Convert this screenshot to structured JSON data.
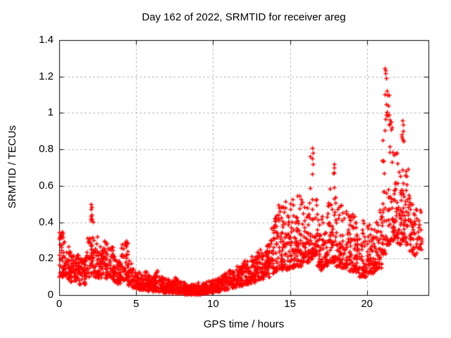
{
  "figure": {
    "title": "Day 162 of 2022, SRMTID for receiver areg",
    "xlabel": "GPS time / hours",
    "ylabel": "SRMTID / TECUs"
  },
  "chart_data": {
    "type": "scatter",
    "title": "Day 162 of 2022, SRMTID for receiver areg",
    "xlabel": "GPS time / hours",
    "ylabel": "SRMTID / TECUs",
    "xlim": [
      0,
      24
    ],
    "ylim": [
      0,
      1.4
    ],
    "xticks": [
      0,
      5,
      10,
      15,
      20
    ],
    "xtick_labels": [
      "0",
      "5",
      "10",
      "15",
      "20"
    ],
    "yticks": [
      0,
      0.2,
      0.4,
      0.6,
      0.8,
      1.0,
      1.2,
      1.4
    ],
    "ytick_labels": [
      "0",
      "0.2",
      "0.4",
      "0.6",
      "0.8",
      "1",
      "1.2",
      "1.4"
    ],
    "grid": true,
    "grid_style": "dashed",
    "legend": "none",
    "marker": "plus",
    "marker_color": "#ff0000",
    "grid_color": "#b4b4b4",
    "axis_color": "#000000",
    "envelope_bins": [
      [
        0.0,
        0.25,
        0.1,
        0.37,
        30
      ],
      [
        0.25,
        0.5,
        0.1,
        0.32,
        28
      ],
      [
        0.5,
        0.75,
        0.09,
        0.27,
        26
      ],
      [
        0.75,
        1.0,
        0.07,
        0.22,
        26
      ],
      [
        1.0,
        1.25,
        0.08,
        0.24,
        26
      ],
      [
        1.25,
        1.5,
        0.06,
        0.22,
        26
      ],
      [
        1.5,
        1.75,
        0.06,
        0.2,
        26
      ],
      [
        1.75,
        2.0,
        0.1,
        0.32,
        26
      ],
      [
        2.0,
        2.25,
        0.12,
        0.5,
        30
      ],
      [
        2.25,
        2.5,
        0.1,
        0.33,
        26
      ],
      [
        2.5,
        2.75,
        0.09,
        0.28,
        26
      ],
      [
        2.75,
        3.0,
        0.1,
        0.3,
        26
      ],
      [
        3.0,
        3.25,
        0.09,
        0.29,
        26
      ],
      [
        3.25,
        3.5,
        0.1,
        0.27,
        26
      ],
      [
        3.5,
        3.75,
        0.07,
        0.22,
        26
      ],
      [
        3.75,
        4.0,
        0.06,
        0.2,
        26
      ],
      [
        4.0,
        4.25,
        0.08,
        0.28,
        26
      ],
      [
        4.25,
        4.5,
        0.08,
        0.3,
        26
      ],
      [
        4.5,
        4.75,
        0.05,
        0.2,
        26
      ],
      [
        4.75,
        5.0,
        0.04,
        0.15,
        26
      ],
      [
        5.0,
        5.25,
        0.03,
        0.13,
        28
      ],
      [
        5.25,
        5.5,
        0.03,
        0.12,
        28
      ],
      [
        5.5,
        5.75,
        0.03,
        0.13,
        28
      ],
      [
        5.75,
        6.0,
        0.025,
        0.11,
        28
      ],
      [
        6.0,
        6.25,
        0.02,
        0.1,
        28
      ],
      [
        6.25,
        6.5,
        0.02,
        0.14,
        28
      ],
      [
        6.5,
        6.75,
        0.02,
        0.11,
        28
      ],
      [
        6.75,
        7.0,
        0.015,
        0.09,
        28
      ],
      [
        7.0,
        7.25,
        0.015,
        0.09,
        28
      ],
      [
        7.25,
        7.5,
        0.01,
        0.08,
        28
      ],
      [
        7.5,
        7.75,
        0.01,
        0.1,
        28
      ],
      [
        7.75,
        8.0,
        0.01,
        0.08,
        28
      ],
      [
        8.0,
        8.25,
        0.005,
        0.07,
        30
      ],
      [
        8.25,
        8.5,
        0.005,
        0.06,
        30
      ],
      [
        8.5,
        8.75,
        0.005,
        0.06,
        30
      ],
      [
        8.75,
        9.0,
        0.005,
        0.06,
        30
      ],
      [
        9.0,
        9.25,
        0.005,
        0.07,
        30
      ],
      [
        9.25,
        9.5,
        0.01,
        0.07,
        30
      ],
      [
        9.5,
        9.75,
        0.01,
        0.08,
        30
      ],
      [
        9.75,
        10.0,
        0.015,
        0.08,
        30
      ],
      [
        10.0,
        10.25,
        0.02,
        0.09,
        28
      ],
      [
        10.25,
        10.5,
        0.02,
        0.1,
        28
      ],
      [
        10.5,
        10.75,
        0.03,
        0.11,
        28
      ],
      [
        10.75,
        11.0,
        0.03,
        0.12,
        28
      ],
      [
        11.0,
        11.25,
        0.04,
        0.15,
        28
      ],
      [
        11.25,
        11.5,
        0.04,
        0.14,
        28
      ],
      [
        11.5,
        11.75,
        0.05,
        0.16,
        28
      ],
      [
        11.75,
        12.0,
        0.05,
        0.18,
        28
      ],
      [
        12.0,
        12.25,
        0.06,
        0.2,
        28
      ],
      [
        12.25,
        12.5,
        0.06,
        0.19,
        28
      ],
      [
        12.5,
        12.75,
        0.07,
        0.22,
        28
      ],
      [
        12.75,
        13.0,
        0.08,
        0.24,
        28
      ],
      [
        13.0,
        13.25,
        0.09,
        0.26,
        28
      ],
      [
        13.25,
        13.5,
        0.1,
        0.25,
        28
      ],
      [
        13.5,
        13.75,
        0.1,
        0.28,
        28
      ],
      [
        13.75,
        14.0,
        0.12,
        0.42,
        28
      ],
      [
        14.0,
        14.25,
        0.13,
        0.44,
        28
      ],
      [
        14.25,
        14.5,
        0.14,
        0.5,
        28
      ],
      [
        14.5,
        14.75,
        0.15,
        0.52,
        28
      ],
      [
        14.75,
        15.0,
        0.14,
        0.46,
        28
      ],
      [
        15.0,
        15.25,
        0.15,
        0.55,
        30
      ],
      [
        15.25,
        15.5,
        0.16,
        0.5,
        30
      ],
      [
        15.5,
        15.75,
        0.16,
        0.55,
        30
      ],
      [
        15.75,
        16.0,
        0.18,
        0.63,
        30
      ],
      [
        16.0,
        16.25,
        0.18,
        0.5,
        30
      ],
      [
        16.25,
        16.5,
        0.2,
        0.81,
        32
      ],
      [
        16.5,
        16.75,
        0.22,
        0.78,
        30
      ],
      [
        16.75,
        17.0,
        0.16,
        0.5,
        28
      ],
      [
        17.0,
        17.25,
        0.14,
        0.45,
        28
      ],
      [
        17.25,
        17.5,
        0.16,
        0.5,
        28
      ],
      [
        17.5,
        17.75,
        0.18,
        0.6,
        28
      ],
      [
        17.75,
        18.0,
        0.18,
        0.72,
        30
      ],
      [
        18.0,
        18.25,
        0.16,
        0.55,
        28
      ],
      [
        18.25,
        18.5,
        0.15,
        0.5,
        28
      ],
      [
        18.5,
        18.75,
        0.15,
        0.48,
        28
      ],
      [
        18.75,
        19.0,
        0.13,
        0.45,
        28
      ],
      [
        19.0,
        19.25,
        0.13,
        0.45,
        26
      ],
      [
        19.25,
        19.5,
        0.12,
        0.42,
        26
      ],
      [
        19.5,
        19.75,
        0.1,
        0.38,
        26
      ],
      [
        19.75,
        20.0,
        0.1,
        0.42,
        26
      ],
      [
        20.0,
        20.25,
        0.12,
        0.4,
        26
      ],
      [
        20.25,
        20.5,
        0.12,
        0.42,
        26
      ],
      [
        20.5,
        20.75,
        0.14,
        0.46,
        26
      ],
      [
        20.75,
        21.0,
        0.15,
        0.5,
        26
      ],
      [
        21.0,
        21.25,
        0.22,
        1.25,
        34
      ],
      [
        21.25,
        21.5,
        0.28,
        1.12,
        30
      ],
      [
        21.5,
        21.75,
        0.3,
        0.95,
        30
      ],
      [
        21.75,
        22.0,
        0.32,
        0.8,
        30
      ],
      [
        22.0,
        22.25,
        0.28,
        0.75,
        30
      ],
      [
        22.25,
        22.5,
        0.3,
        0.97,
        30
      ],
      [
        22.5,
        22.75,
        0.28,
        0.7,
        28
      ],
      [
        22.75,
        23.0,
        0.24,
        0.55,
        26
      ],
      [
        23.0,
        23.25,
        0.22,
        0.5,
        24
      ],
      [
        23.25,
        23.6,
        0.25,
        0.47,
        20
      ]
    ],
    "peak_points": [
      [
        2.05,
        0.5
      ],
      [
        2.07,
        0.47
      ],
      [
        2.09,
        0.44
      ],
      [
        2.05,
        0.41
      ],
      [
        16.45,
        0.81
      ],
      [
        16.48,
        0.78
      ],
      [
        16.43,
        0.75
      ],
      [
        16.5,
        0.72
      ],
      [
        17.85,
        0.72
      ],
      [
        17.88,
        0.7
      ],
      [
        17.82,
        0.67
      ],
      [
        21.18,
        1.245
      ],
      [
        21.2,
        1.235
      ],
      [
        21.22,
        1.22
      ],
      [
        21.25,
        1.19
      ],
      [
        21.3,
        1.12
      ],
      [
        21.33,
        1.1
      ],
      [
        21.4,
        1.04
      ],
      [
        21.45,
        0.99
      ],
      [
        21.55,
        0.95
      ],
      [
        21.6,
        0.92
      ],
      [
        22.3,
        0.96
      ],
      [
        22.33,
        0.935
      ],
      [
        22.36,
        0.9
      ],
      [
        22.28,
        0.88
      ]
    ]
  }
}
